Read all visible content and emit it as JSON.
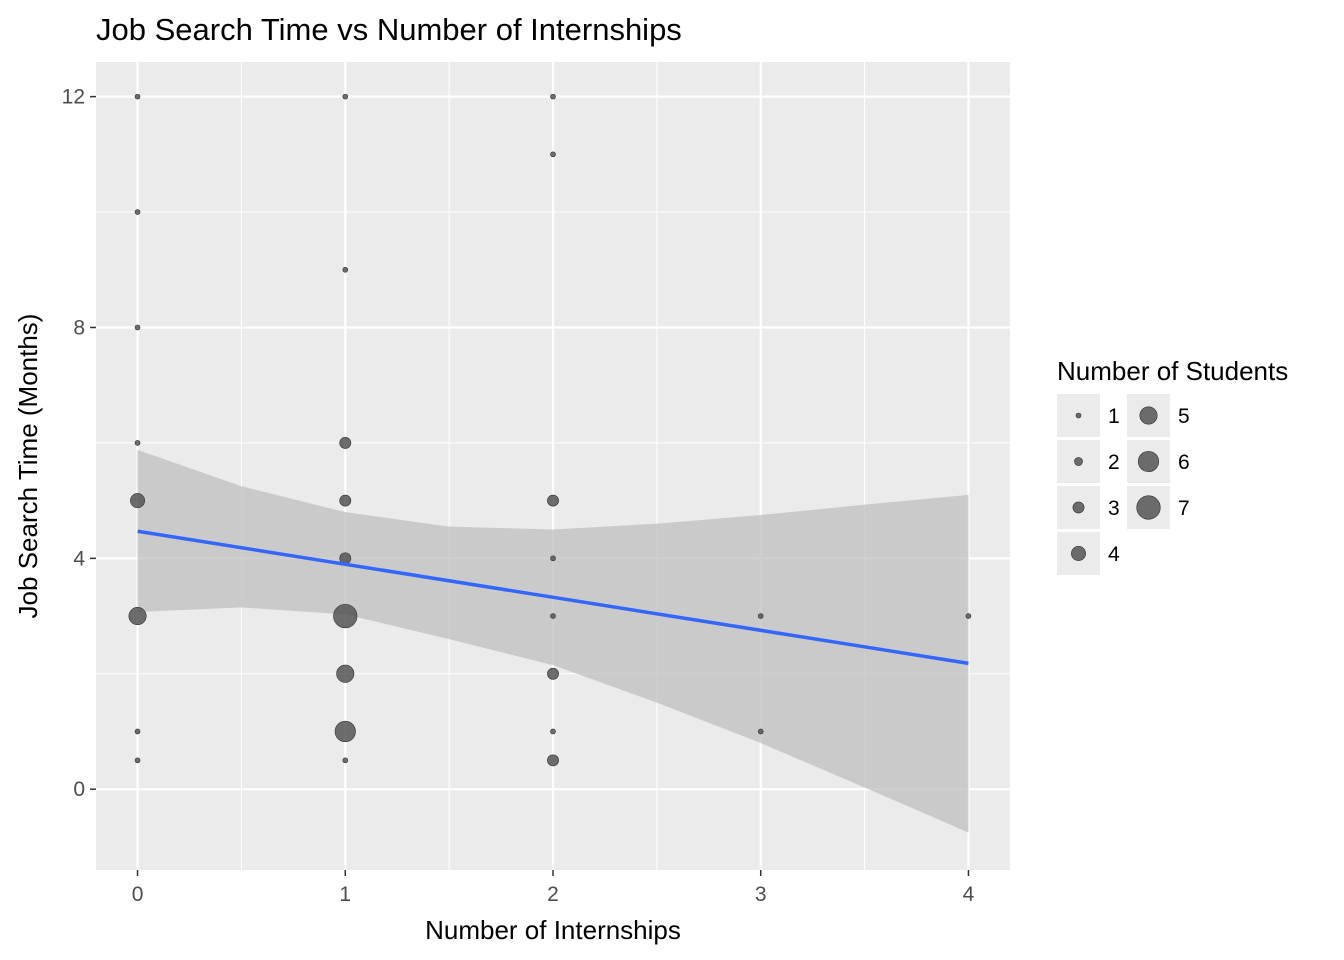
{
  "chart_data": {
    "type": "scatter",
    "title": "Job Search Time vs Number of Internships",
    "xlabel": "Number of Internships",
    "ylabel": "Job Search Time (Months)",
    "xlim": [
      -0.2,
      4.2
    ],
    "ylim": [
      -1.4,
      12.6
    ],
    "x_ticks": [
      0,
      1,
      2,
      3,
      4
    ],
    "y_ticks": [
      0,
      4,
      8,
      12
    ],
    "x_tick_labels": [
      "0",
      "1",
      "2",
      "3",
      "4"
    ],
    "y_tick_labels": [
      "0",
      "4",
      "8",
      "12"
    ],
    "grid": true,
    "legend_position": "right",
    "legend": {
      "title": "Number of Students",
      "entries": [
        {
          "label": "1",
          "size": 1
        },
        {
          "label": "2",
          "size": 2
        },
        {
          "label": "3",
          "size": 3
        },
        {
          "label": "4",
          "size": 4
        },
        {
          "label": "5",
          "size": 5
        },
        {
          "label": "6",
          "size": 6
        },
        {
          "label": "7",
          "size": 7
        }
      ]
    },
    "points": [
      {
        "x": 0,
        "y": 12,
        "n": 1
      },
      {
        "x": 0,
        "y": 10,
        "n": 1
      },
      {
        "x": 0,
        "y": 8,
        "n": 1
      },
      {
        "x": 0,
        "y": 6,
        "n": 1
      },
      {
        "x": 0,
        "y": 5,
        "n": 4
      },
      {
        "x": 0,
        "y": 3,
        "n": 5
      },
      {
        "x": 0,
        "y": 1,
        "n": 1
      },
      {
        "x": 0,
        "y": 0.5,
        "n": 1
      },
      {
        "x": 1,
        "y": 12,
        "n": 1
      },
      {
        "x": 1,
        "y": 9,
        "n": 1
      },
      {
        "x": 1,
        "y": 6,
        "n": 3
      },
      {
        "x": 1,
        "y": 5,
        "n": 3
      },
      {
        "x": 1,
        "y": 4,
        "n": 3
      },
      {
        "x": 1,
        "y": 3,
        "n": 7
      },
      {
        "x": 1,
        "y": 2,
        "n": 5
      },
      {
        "x": 1,
        "y": 1,
        "n": 6
      },
      {
        "x": 1,
        "y": 0.5,
        "n": 1
      },
      {
        "x": 2,
        "y": 12,
        "n": 1
      },
      {
        "x": 2,
        "y": 11,
        "n": 1
      },
      {
        "x": 2,
        "y": 5,
        "n": 3
      },
      {
        "x": 2,
        "y": 4,
        "n": 1
      },
      {
        "x": 2,
        "y": 3,
        "n": 1
      },
      {
        "x": 2,
        "y": 2,
        "n": 3
      },
      {
        "x": 2,
        "y": 1,
        "n": 1
      },
      {
        "x": 2,
        "y": 0.5,
        "n": 3
      },
      {
        "x": 3,
        "y": 3,
        "n": 1
      },
      {
        "x": 3,
        "y": 1,
        "n": 1
      },
      {
        "x": 4,
        "y": 3,
        "n": 1
      }
    ],
    "trend_line": {
      "x": [
        0,
        4
      ],
      "y": [
        4.47,
        2.18
      ],
      "color": "#3366ff"
    },
    "confidence_band": {
      "x": [
        0,
        0.5,
        1,
        1.5,
        2,
        2.5,
        3,
        3.5,
        4
      ],
      "upper": [
        5.88,
        5.25,
        4.8,
        4.55,
        4.5,
        4.6,
        4.75,
        4.93,
        5.1
      ],
      "lower": [
        3.07,
        3.15,
        3.03,
        2.6,
        2.15,
        1.5,
        0.8,
        0.03,
        -0.75
      ]
    },
    "colors": {
      "panel": "#ebebeb",
      "grid": "#ffffff",
      "point": "#555555",
      "band": "#bdbdbd"
    }
  }
}
